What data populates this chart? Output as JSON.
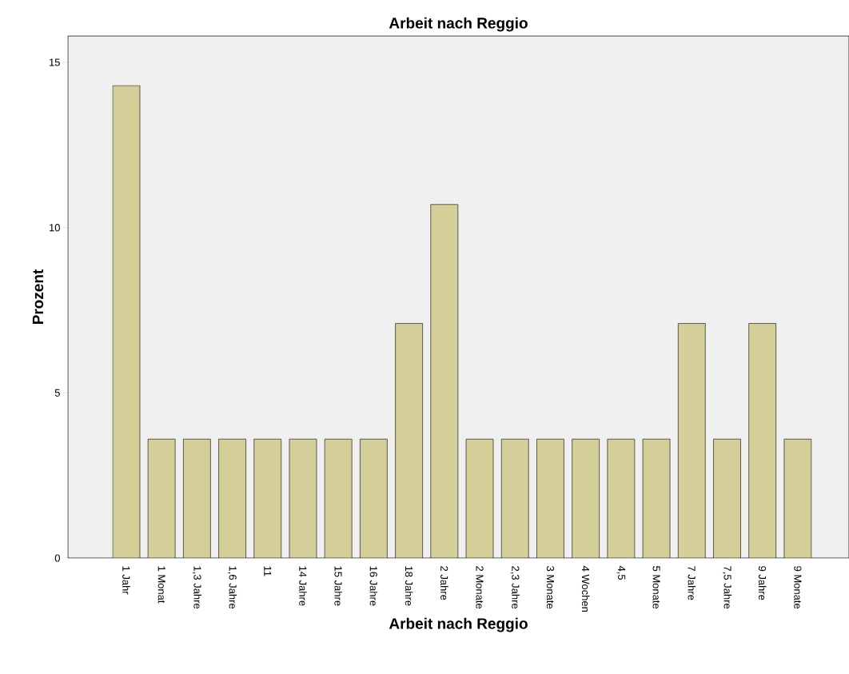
{
  "chart_data": {
    "type": "bar",
    "title": "Arbeit nach Reggio",
    "xlabel": "Arbeit nach Reggio",
    "ylabel": "Prozent",
    "categories": [
      "1 Jahr",
      "1 Monat",
      "1,3 Jahre",
      "1,6 Jahre",
      "11",
      "14 Jahre",
      "15 Jahre",
      "16 Jahre",
      "18 Jahre",
      "2 Jahre",
      "2 Monate",
      "2,3 Jahre",
      "3 Monate",
      "4 Wochen",
      "4,5",
      "5 Monate",
      "7 Jahre",
      "7,5 Jahre",
      "9 Jahre",
      "9 Monate"
    ],
    "values": [
      14.3,
      3.6,
      3.6,
      3.6,
      3.6,
      3.6,
      3.6,
      3.6,
      7.1,
      10.7,
      3.6,
      3.6,
      3.6,
      3.6,
      3.6,
      3.6,
      7.1,
      3.6,
      7.1,
      3.6
    ],
    "color": "#d4cf98",
    "ylim": [
      0,
      15.8
    ],
    "yticks": [
      0,
      5,
      10,
      15
    ]
  }
}
